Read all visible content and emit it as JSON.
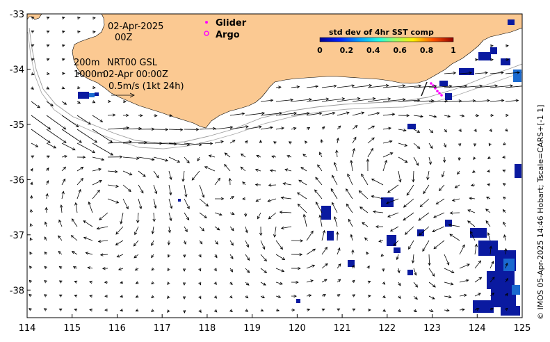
{
  "map": {
    "lon_range": [
      114,
      125
    ],
    "lat_range": [
      -38.5,
      -33
    ],
    "x_ticks": [
      "114",
      "115",
      "116",
      "117",
      "118",
      "119",
      "120",
      "121",
      "122",
      "123",
      "124",
      "125"
    ],
    "y_ticks": [
      "-33",
      "-34",
      "-35",
      "-36",
      "-37",
      "-38"
    ],
    "date_line": "02-Apr-2025",
    "time_line": "00Z",
    "depth_200": "200m",
    "depth_1000": "1000m",
    "source": "NRT00 GSL",
    "valid_time": "02-Apr 00:00Z",
    "scale_label": "0.5m/s (1kt 24h)",
    "legend_glider": "Glider",
    "legend_argo": "Argo",
    "colorbar_title": "std dev of 4hr SST comp",
    "colorbar_ticks": [
      "0",
      "0.2",
      "0.4",
      "0.6",
      "0.8",
      "1"
    ],
    "credit": "© IMOS 05-Apr-2025 14:46 Hobart; Tscale=CARS+[-1 1]",
    "land_color": "#fbc992",
    "glider_color": "#ff00ff"
  }
}
